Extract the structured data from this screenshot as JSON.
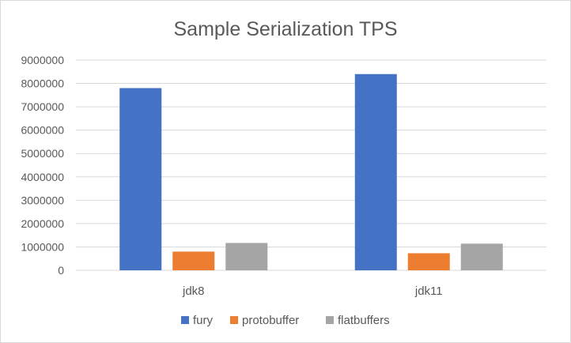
{
  "chart_data": {
    "type": "bar",
    "title": "Sample Serialization TPS",
    "xlabel": "",
    "ylabel": "",
    "categories": [
      "jdk8",
      "jdk11"
    ],
    "series": [
      {
        "name": "fury",
        "color": "#4472c4",
        "values": [
          7800000,
          8400000
        ]
      },
      {
        "name": "protobuffer",
        "color": "#ed7d31",
        "values": [
          800000,
          730000
        ]
      },
      {
        "name": "flatbuffers",
        "color": "#a5a5a5",
        "values": [
          1170000,
          1140000
        ]
      }
    ],
    "ylim": [
      0,
      9000000
    ],
    "yticks": [
      "0",
      "1000000",
      "2000000",
      "3000000",
      "4000000",
      "5000000",
      "6000000",
      "7000000",
      "8000000",
      "9000000"
    ],
    "grid": true,
    "legend_position": "bottom",
    "gridline_color": "#d9d9d9"
  }
}
